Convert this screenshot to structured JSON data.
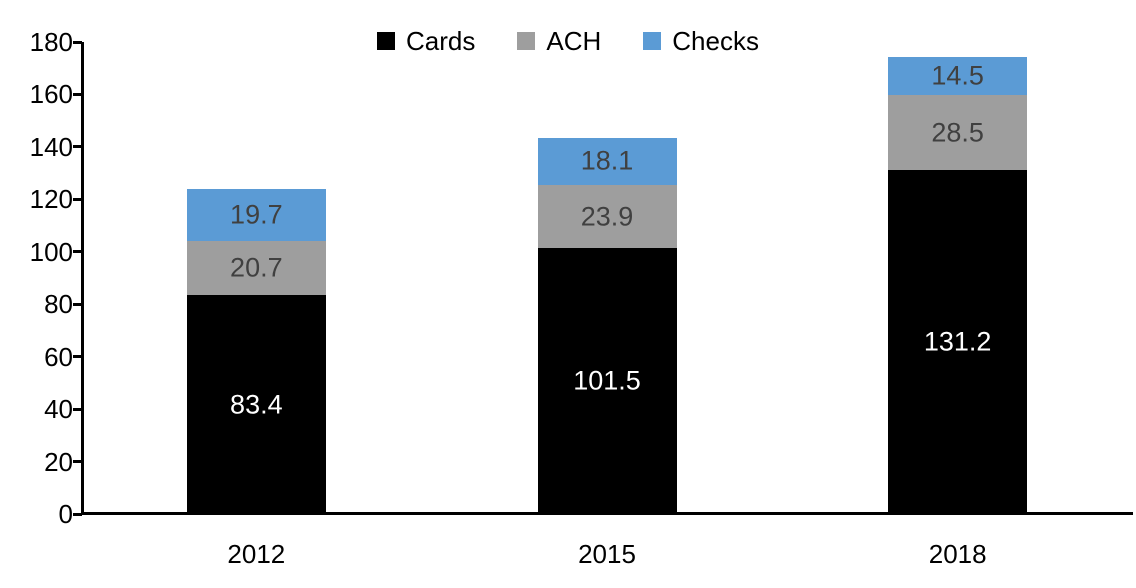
{
  "chart_data": {
    "type": "bar",
    "stacked": true,
    "title": "",
    "xlabel": "",
    "ylabel": "",
    "categories": [
      "2012",
      "2015",
      "2018"
    ],
    "series": [
      {
        "name": "Cards",
        "color": "#000000",
        "label_color": "#ffffff",
        "values": [
          83.4,
          101.5,
          131.2
        ]
      },
      {
        "name": "ACH",
        "color": "#9e9e9e",
        "label_color": "#404040",
        "values": [
          20.7,
          23.9,
          28.5
        ]
      },
      {
        "name": "Checks",
        "color": "#5b9bd5",
        "label_color": "#404040",
        "values": [
          19.7,
          18.1,
          14.5
        ]
      }
    ],
    "totals": [
      123.8,
      143.5,
      174.2
    ],
    "ylim": [
      0,
      180
    ],
    "ytick_step": 20,
    "yticks": [
      0,
      20,
      40,
      60,
      80,
      100,
      120,
      140,
      160,
      180
    ],
    "grid": false,
    "legend_position": "top-center",
    "legend_labels": [
      "Cards",
      "ACH",
      "Checks"
    ],
    "colors": {
      "cards": "#000000",
      "ach": "#9e9e9e",
      "checks": "#5b9bd5",
      "axis": "#000000",
      "segment_label_dark": "#404040",
      "segment_label_light": "#ffffff",
      "background": "#ffffff"
    }
  }
}
